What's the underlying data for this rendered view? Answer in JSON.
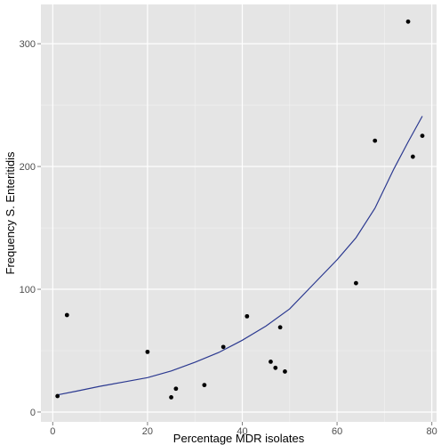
{
  "chart_data": {
    "type": "scatter",
    "xlabel": "Percentage MDR isolates",
    "ylabel": "Frequency S. Enteritidis",
    "xlim": [
      -2.5,
      81
    ],
    "ylim": [
      -8,
      332
    ],
    "x_ticks": [
      0,
      20,
      40,
      60,
      80
    ],
    "y_ticks": [
      0,
      100,
      200,
      300
    ],
    "x_tick_labels": [
      "0",
      "20",
      "40",
      "60",
      "80"
    ],
    "y_tick_labels": [
      "0",
      "100",
      "200",
      "300"
    ],
    "grid": true,
    "panel_background": "#e5e5e5",
    "grid_color": "#ffffff",
    "point_color": "#000000",
    "line_color": "#2b3990",
    "series": [
      {
        "kind": "points",
        "x": [
          1,
          3,
          20,
          25,
          26,
          32,
          36,
          41,
          46,
          47,
          48,
          49,
          64,
          68,
          75,
          76,
          78
        ],
        "y": [
          13,
          79,
          49,
          12,
          19,
          22,
          53,
          78,
          41,
          36,
          69,
          33,
          105,
          221,
          318,
          208,
          225
        ]
      },
      {
        "kind": "fitted-line",
        "x": [
          1,
          5,
          10,
          15,
          20,
          25,
          30,
          35,
          40,
          45,
          50,
          55,
          60,
          64,
          68,
          72,
          75,
          78
        ],
        "y": [
          14,
          17,
          21,
          24.5,
          28,
          33.5,
          40.5,
          48.5,
          58.5,
          70,
          84,
          104,
          124,
          142,
          166,
          198,
          220,
          241
        ]
      }
    ]
  }
}
